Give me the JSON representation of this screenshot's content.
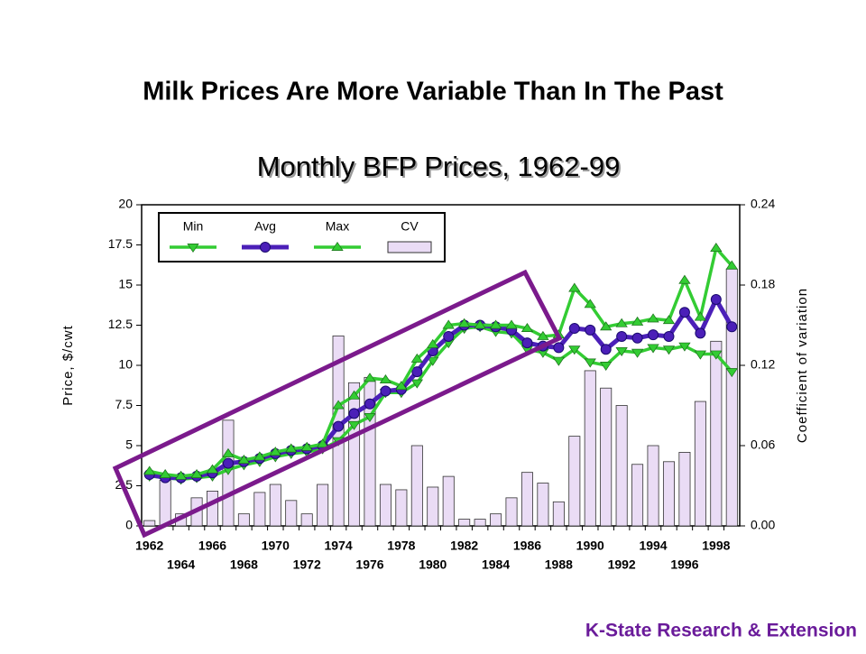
{
  "chart_data": {
    "type": "combo",
    "title": "Milk Prices Are More Variable Than In The Past",
    "subtitle": "Monthly BFP Prices, 1962-99",
    "y_label": "Price, $/cwt",
    "y2_label": "Coefficient of variation",
    "footer": "K-State Research & Extension",
    "categories": [
      "1962",
      null,
      "1964",
      null,
      "1966",
      null,
      "1968",
      null,
      "1970",
      null,
      "1972",
      null,
      "1974",
      null,
      "1976",
      null,
      "1978",
      null,
      "1980",
      null,
      "1982",
      null,
      "1984",
      null,
      "1986",
      null,
      "1988",
      null,
      "1990",
      null,
      "1992",
      null,
      "1994",
      null,
      "1996",
      null,
      "1998",
      null
    ],
    "ylim": [
      0,
      20
    ],
    "yticks": [
      0,
      2.5,
      5,
      7.5,
      10,
      12.5,
      15,
      17.5,
      20
    ],
    "y2lim": [
      0,
      0.24
    ],
    "y2ticks": [
      {
        "value": 0,
        "label": "0.00"
      },
      {
        "value": 0.06,
        "label": "0.06"
      },
      {
        "value": 0.12,
        "label": "0.12"
      },
      {
        "value": 0.18,
        "label": "0.18"
      },
      {
        "value": 0.24,
        "label": "0.24"
      }
    ],
    "legend": "top-left",
    "series": [
      {
        "name": "Min",
        "kind": "line",
        "marker": "triangle-down",
        "color": "#33cc33",
        "values": [
          3.1,
          3.0,
          2.9,
          3.0,
          3.1,
          3.5,
          3.8,
          4.0,
          4.3,
          4.5,
          4.6,
          4.8,
          5.3,
          6.3,
          6.8,
          8.3,
          8.3,
          8.9,
          10.3,
          11.4,
          12.3,
          12.4,
          12.1,
          12.0,
          11.0,
          10.8,
          10.3,
          11.0,
          10.2,
          10.0,
          10.9,
          10.8,
          11.1,
          11.0,
          11.2,
          10.7,
          10.7,
          9.6
        ]
      },
      {
        "name": "Avg",
        "kind": "line",
        "marker": "circle",
        "color": "#4b1fb8",
        "values": [
          3.2,
          3.0,
          3.0,
          3.1,
          3.3,
          3.9,
          4.0,
          4.2,
          4.5,
          4.7,
          4.8,
          5.0,
          6.2,
          7.0,
          7.6,
          8.4,
          8.5,
          9.6,
          10.9,
          11.8,
          12.5,
          12.5,
          12.4,
          12.2,
          11.4,
          11.2,
          11.1,
          12.3,
          12.2,
          11.0,
          11.8,
          11.7,
          11.9,
          11.8,
          13.3,
          12.0,
          14.1,
          12.4
        ]
      },
      {
        "name": "Max",
        "kind": "line",
        "marker": "triangle-up",
        "color": "#33cc33",
        "values": [
          3.4,
          3.2,
          3.1,
          3.2,
          3.5,
          4.5,
          4.1,
          4.3,
          4.6,
          4.8,
          4.9,
          5.1,
          7.5,
          8.1,
          9.2,
          9.1,
          8.7,
          10.4,
          11.3,
          12.5,
          12.6,
          12.5,
          12.5,
          12.5,
          12.3,
          11.8,
          11.9,
          14.8,
          13.8,
          12.4,
          12.6,
          12.7,
          12.9,
          12.8,
          15.3,
          13.0,
          17.3,
          16.2
        ]
      },
      {
        "name": "CV",
        "kind": "bar",
        "axis": "y2",
        "color": "#eadcf5",
        "values": [
          0.004,
          0.034,
          0.009,
          0.021,
          0.026,
          0.079,
          0.009,
          0.025,
          0.031,
          0.019,
          0.009,
          0.031,
          0.142,
          0.107,
          0.111,
          0.031,
          0.027,
          0.06,
          0.029,
          0.037,
          0.005,
          0.005,
          0.009,
          0.021,
          0.04,
          0.032,
          0.018,
          0.067,
          0.116,
          0.103,
          0.09,
          0.046,
          0.06,
          0.048,
          0.055,
          0.093,
          0.138,
          0.192
        ]
      }
    ]
  }
}
